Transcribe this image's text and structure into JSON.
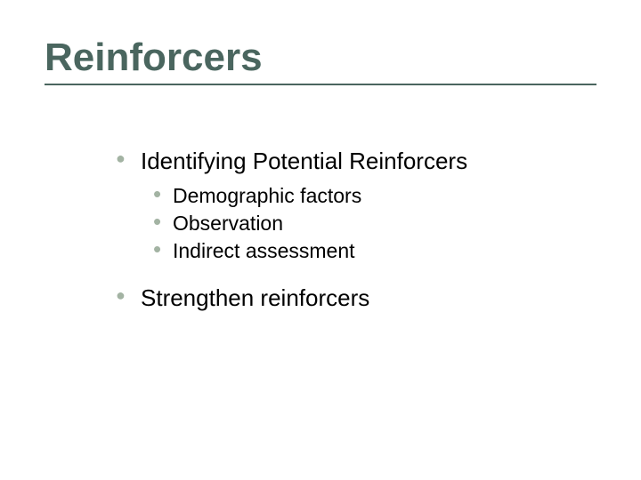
{
  "slide": {
    "title": "Reinforcers",
    "title_color": "#4a665f",
    "title_fontsize": 44,
    "title_underline_color": "#4a665f",
    "background_color": "#ffffff",
    "bullet_color": "#a3b3a3",
    "text_color": "#000000",
    "items": [
      {
        "label": "Identifying Potential Reinforcers",
        "subitems": [
          {
            "label": "Demographic factors"
          },
          {
            "label": "Observation"
          },
          {
            "label": "Indirect assessment"
          }
        ]
      },
      {
        "label": "Strengthen reinforcers",
        "subitems": []
      }
    ],
    "level1_fontsize": 26,
    "level2_fontsize": 23
  }
}
